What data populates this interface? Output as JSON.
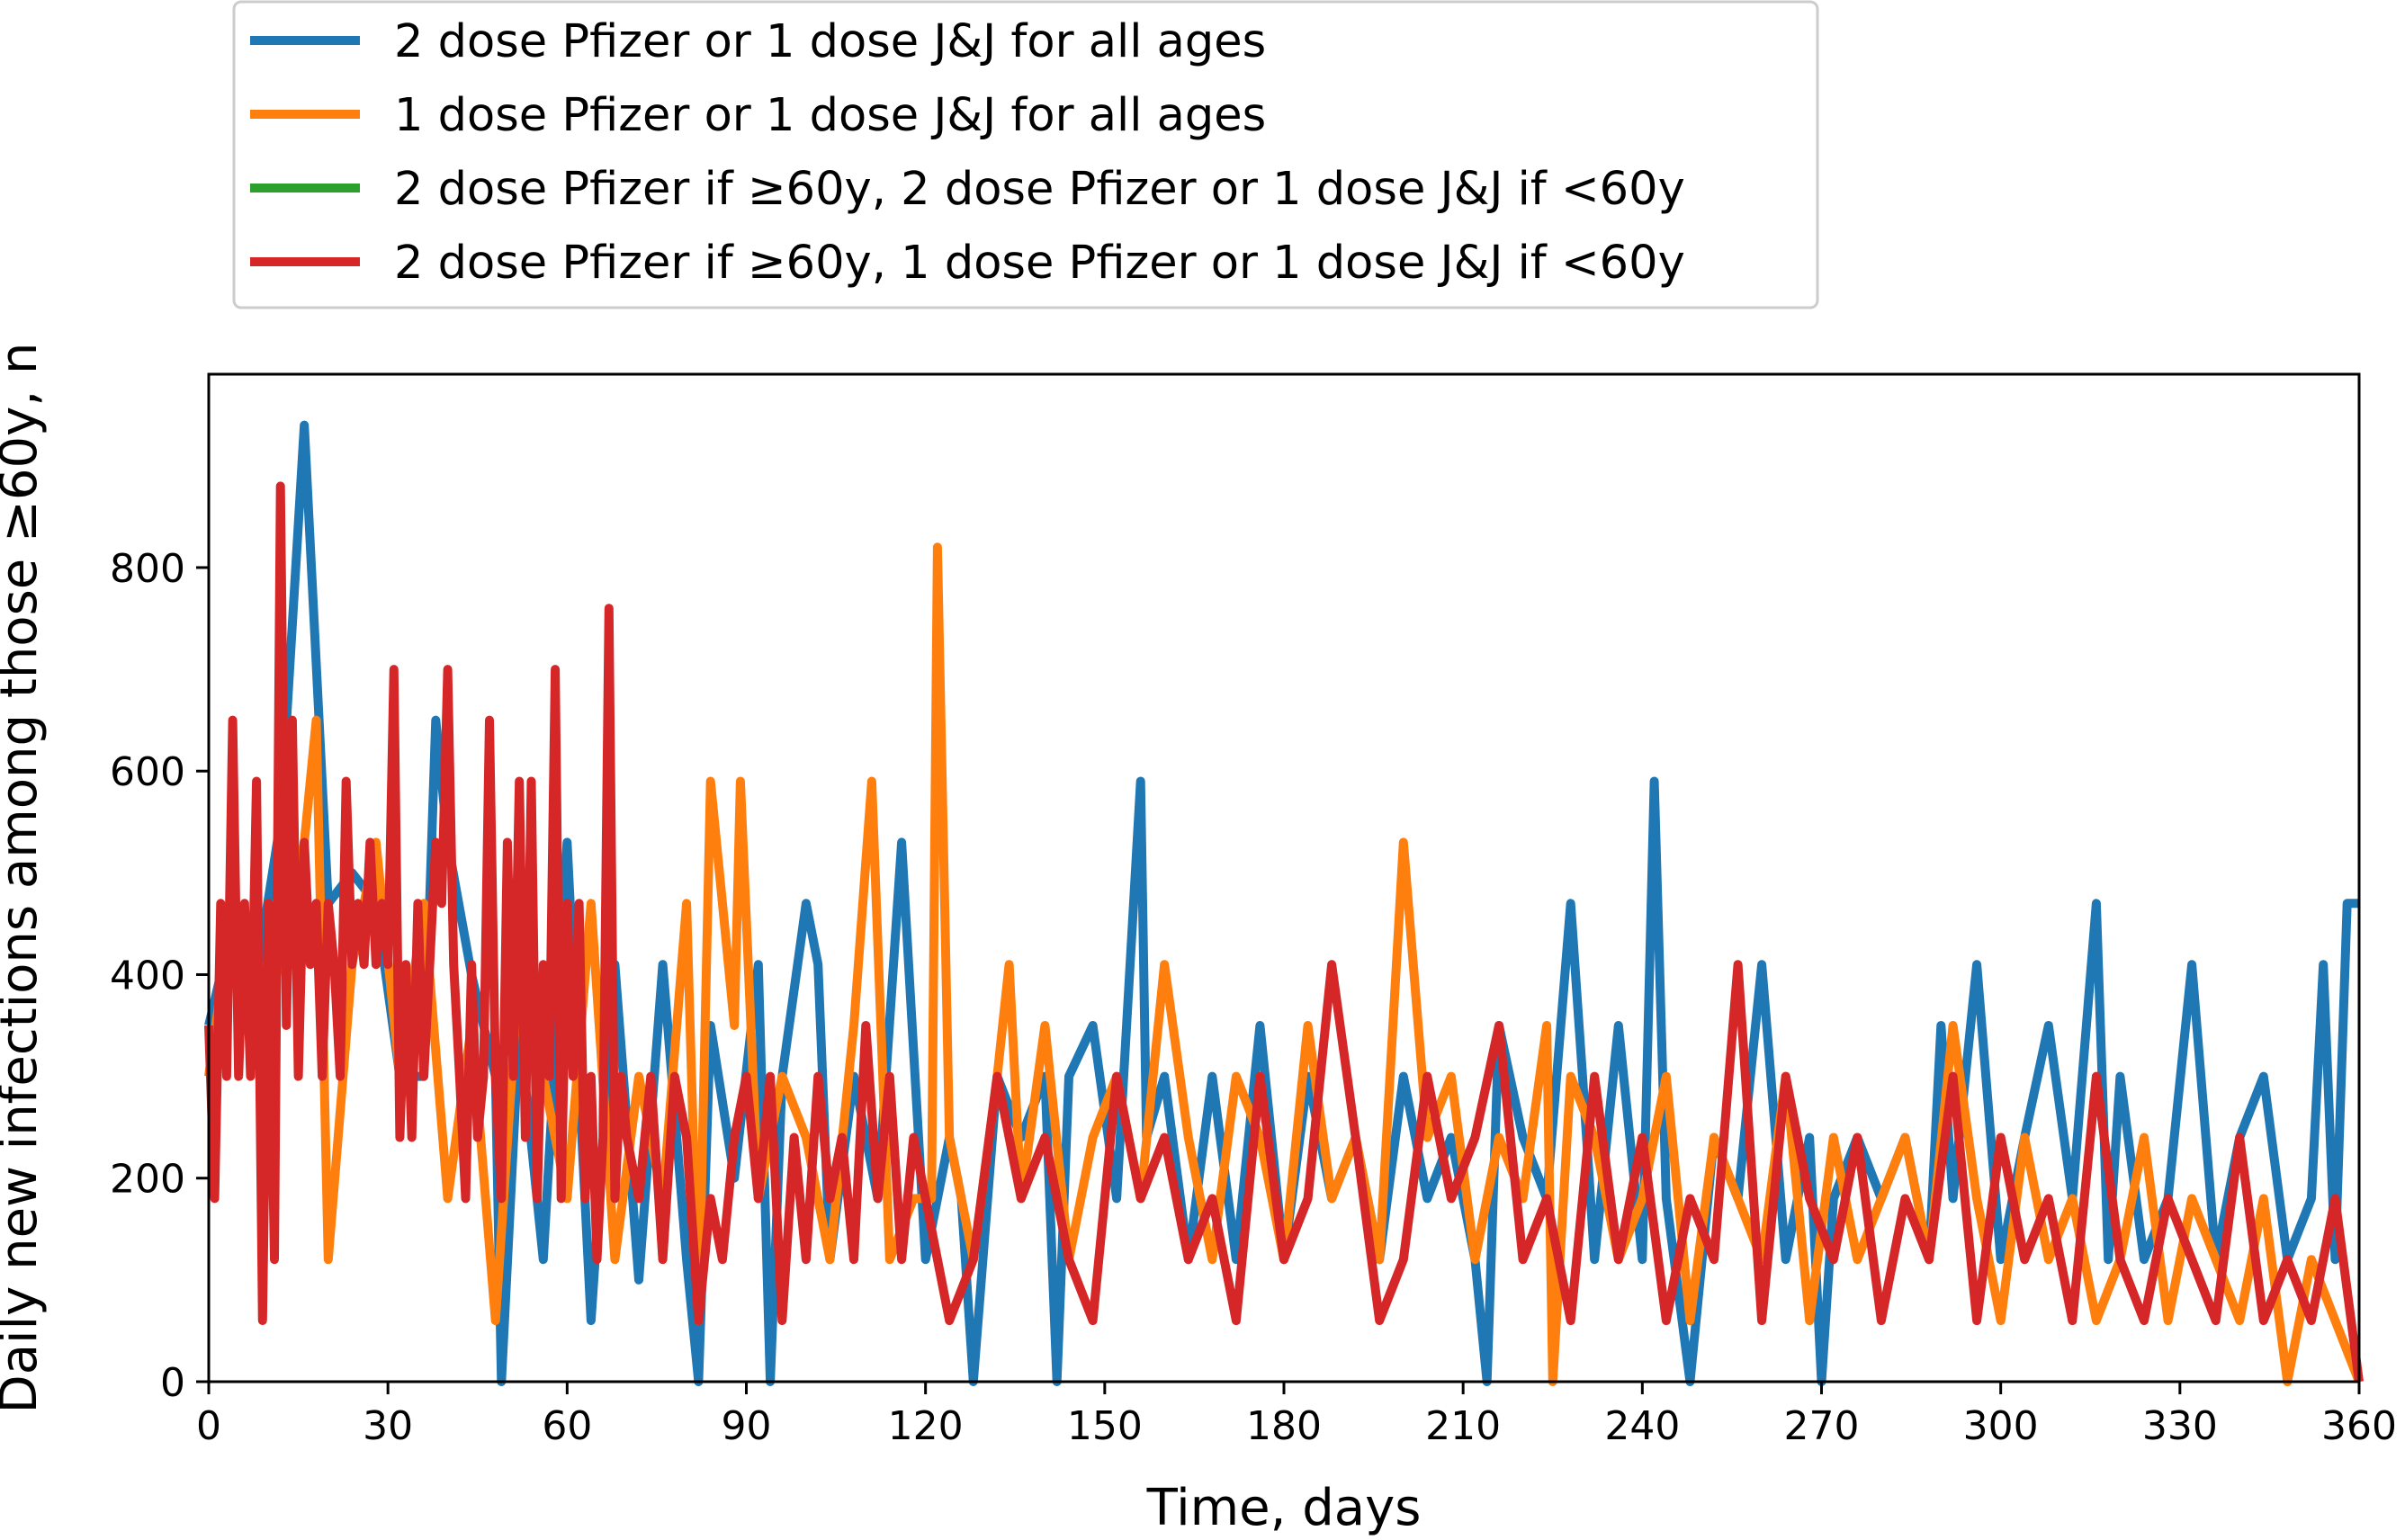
{
  "chart_data": {
    "type": "line",
    "title": "",
    "xlabel": "Time, days",
    "ylabel": "Daily new infections among those ≥60y, n",
    "xlim": [
      0,
      360
    ],
    "ylim": [
      0,
      990
    ],
    "xticks": [
      0,
      30,
      60,
      90,
      120,
      150,
      180,
      210,
      240,
      270,
      300,
      330,
      360
    ],
    "yticks": [
      0,
      200,
      400,
      600,
      800
    ],
    "grid": false,
    "legend_position": "top-left (outside plot area)",
    "series": [
      {
        "name": "2 dose Pfizer or 1 dose J&J for all ages",
        "color": "#1f77b4",
        "x": [
          0,
          4,
          8,
          12,
          16,
          20,
          24,
          28,
          32,
          36,
          38,
          40,
          44,
          48,
          49,
          52,
          56,
          60,
          64,
          68,
          72,
          76,
          80,
          82,
          84,
          88,
          92,
          94,
          96,
          100,
          102,
          104,
          108,
          112,
          116,
          120,
          124,
          126,
          128,
          132,
          136,
          140,
          142,
          144,
          148,
          152,
          156,
          157,
          160,
          164,
          168,
          172,
          176,
          180,
          184,
          188,
          192,
          196,
          200,
          204,
          208,
          212,
          214,
          216,
          220,
          224,
          228,
          230,
          232,
          236,
          240,
          242,
          244,
          248,
          252,
          256,
          260,
          264,
          268,
          270,
          272,
          276,
          280,
          284,
          288,
          290,
          292,
          296,
          300,
          304,
          308,
          312,
          316,
          318,
          320,
          324,
          328,
          332,
          336,
          340,
          344,
          348,
          352,
          354,
          356,
          358,
          360
        ],
        "values": [
          350,
          450,
          400,
          550,
          940,
          470,
          500,
          470,
          300,
          300,
          650,
          530,
          400,
          300,
          0,
          350,
          120,
          530,
          60,
          410,
          100,
          410,
          120,
          0,
          350,
          200,
          410,
          0,
          300,
          470,
          410,
          120,
          300,
          180,
          530,
          120,
          240,
          180,
          0,
          300,
          240,
          300,
          0,
          300,
          350,
          180,
          590,
          240,
          300,
          120,
          300,
          120,
          350,
          120,
          300,
          180,
          240,
          120,
          300,
          180,
          240,
          120,
          0,
          350,
          240,
          180,
          470,
          300,
          120,
          350,
          120,
          590,
          180,
          0,
          240,
          180,
          410,
          120,
          240,
          0,
          180,
          240,
          180,
          240,
          120,
          350,
          180,
          410,
          120,
          240,
          350,
          180,
          470,
          120,
          300,
          120,
          180,
          410,
          120,
          240,
          300,
          120,
          180,
          410,
          120,
          470,
          470
        ]
      },
      {
        "name": "1 dose Pfizer or 1 dose J&J for all ages",
        "color": "#ff7f0e",
        "x": [
          0,
          4,
          8,
          12,
          16,
          18,
          20,
          24,
          28,
          32,
          36,
          40,
          44,
          48,
          52,
          56,
          60,
          64,
          68,
          72,
          76,
          80,
          82,
          84,
          88,
          89,
          92,
          96,
          100,
          104,
          108,
          111,
          114,
          118,
          121,
          122,
          124,
          128,
          132,
          134,
          136,
          140,
          144,
          148,
          152,
          156,
          160,
          164,
          168,
          172,
          176,
          180,
          184,
          188,
          192,
          196,
          200,
          204,
          208,
          212,
          216,
          220,
          224,
          225,
          228,
          232,
          236,
          240,
          244,
          248,
          252,
          256,
          260,
          264,
          268,
          272,
          276,
          280,
          284,
          288,
          292,
          296,
          300,
          304,
          308,
          312,
          316,
          320,
          324,
          328,
          332,
          336,
          340,
          344,
          348,
          352,
          356,
          360
        ],
        "values": [
          300,
          470,
          350,
          410,
          530,
          650,
          120,
          410,
          530,
          300,
          470,
          180,
          350,
          60,
          410,
          300,
          180,
          470,
          120,
          300,
          180,
          470,
          60,
          590,
          350,
          590,
          180,
          300,
          240,
          120,
          350,
          590,
          120,
          180,
          180,
          820,
          240,
          120,
          300,
          410,
          180,
          350,
          120,
          240,
          300,
          180,
          410,
          240,
          120,
          300,
          240,
          120,
          350,
          180,
          240,
          120,
          530,
          240,
          300,
          120,
          240,
          180,
          350,
          0,
          300,
          240,
          120,
          180,
          300,
          60,
          240,
          180,
          120,
          300,
          60,
          240,
          120,
          180,
          240,
          120,
          350,
          180,
          60,
          240,
          120,
          180,
          60,
          120,
          240,
          60,
          180,
          120,
          60,
          180,
          0,
          120,
          60,
          0
        ]
      },
      {
        "name": "2 dose Pfizer if ≥60y, 2 dose Pfizer or 1 dose J&J if <60y",
        "color": "#2ca02c",
        "x": [],
        "values": []
      },
      {
        "name": "2 dose Pfizer if ≥60y, 1 dose Pfizer or 1 dose J&J if <60y",
        "color": "#d62728",
        "x": [
          0,
          1,
          2,
          3,
          4,
          5,
          6,
          7,
          8,
          9,
          10,
          11,
          12,
          13,
          14,
          15,
          16,
          17,
          18,
          19,
          20,
          21,
          22,
          23,
          24,
          25,
          26,
          27,
          28,
          29,
          30,
          31,
          32,
          33,
          34,
          35,
          36,
          37,
          38,
          39,
          40,
          41,
          42,
          43,
          44,
          45,
          46,
          47,
          48,
          49,
          50,
          51,
          52,
          53,
          54,
          55,
          56,
          57,
          58,
          59,
          60,
          61,
          62,
          63,
          64,
          65,
          66,
          67,
          68,
          69,
          70,
          72,
          74,
          76,
          78,
          80,
          82,
          84,
          86,
          88,
          90,
          92,
          94,
          96,
          98,
          100,
          102,
          104,
          106,
          108,
          110,
          112,
          114,
          116,
          118,
          120,
          124,
          128,
          132,
          136,
          140,
          144,
          148,
          152,
          156,
          160,
          164,
          168,
          172,
          176,
          180,
          184,
          188,
          192,
          196,
          200,
          204,
          208,
          212,
          216,
          220,
          224,
          228,
          232,
          236,
          240,
          244,
          248,
          252,
          256,
          260,
          264,
          268,
          272,
          276,
          280,
          284,
          288,
          292,
          296,
          300,
          304,
          308,
          312,
          316,
          320,
          324,
          328,
          332,
          336,
          340,
          344,
          348,
          352,
          356,
          360
        ],
        "values": [
          350,
          180,
          470,
          300,
          650,
          300,
          470,
          300,
          590,
          60,
          470,
          120,
          880,
          350,
          650,
          300,
          530,
          410,
          470,
          300,
          470,
          410,
          300,
          590,
          410,
          470,
          410,
          530,
          410,
          470,
          410,
          700,
          240,
          410,
          240,
          470,
          300,
          410,
          530,
          470,
          700,
          410,
          300,
          180,
          410,
          240,
          300,
          650,
          300,
          180,
          530,
          300,
          590,
          240,
          590,
          180,
          410,
          300,
          700,
          180,
          470,
          300,
          470,
          180,
          300,
          120,
          240,
          760,
          180,
          300,
          240,
          180,
          300,
          120,
          300,
          240,
          60,
          180,
          120,
          240,
          300,
          180,
          300,
          60,
          240,
          120,
          300,
          180,
          240,
          120,
          350,
          180,
          300,
          120,
          240,
          180,
          60,
          120,
          300,
          180,
          240,
          120,
          60,
          300,
          180,
          240,
          120,
          180,
          60,
          300,
          120,
          180,
          410,
          240,
          60,
          120,
          300,
          180,
          240,
          350,
          120,
          180,
          60,
          300,
          120,
          240,
          60,
          180,
          120,
          410,
          60,
          300,
          180,
          120,
          240,
          60,
          180,
          120,
          300,
          60,
          240,
          120,
          180,
          60,
          300,
          120,
          60,
          180,
          120,
          60,
          240,
          60,
          120,
          60,
          180,
          0
        ]
      }
    ]
  }
}
